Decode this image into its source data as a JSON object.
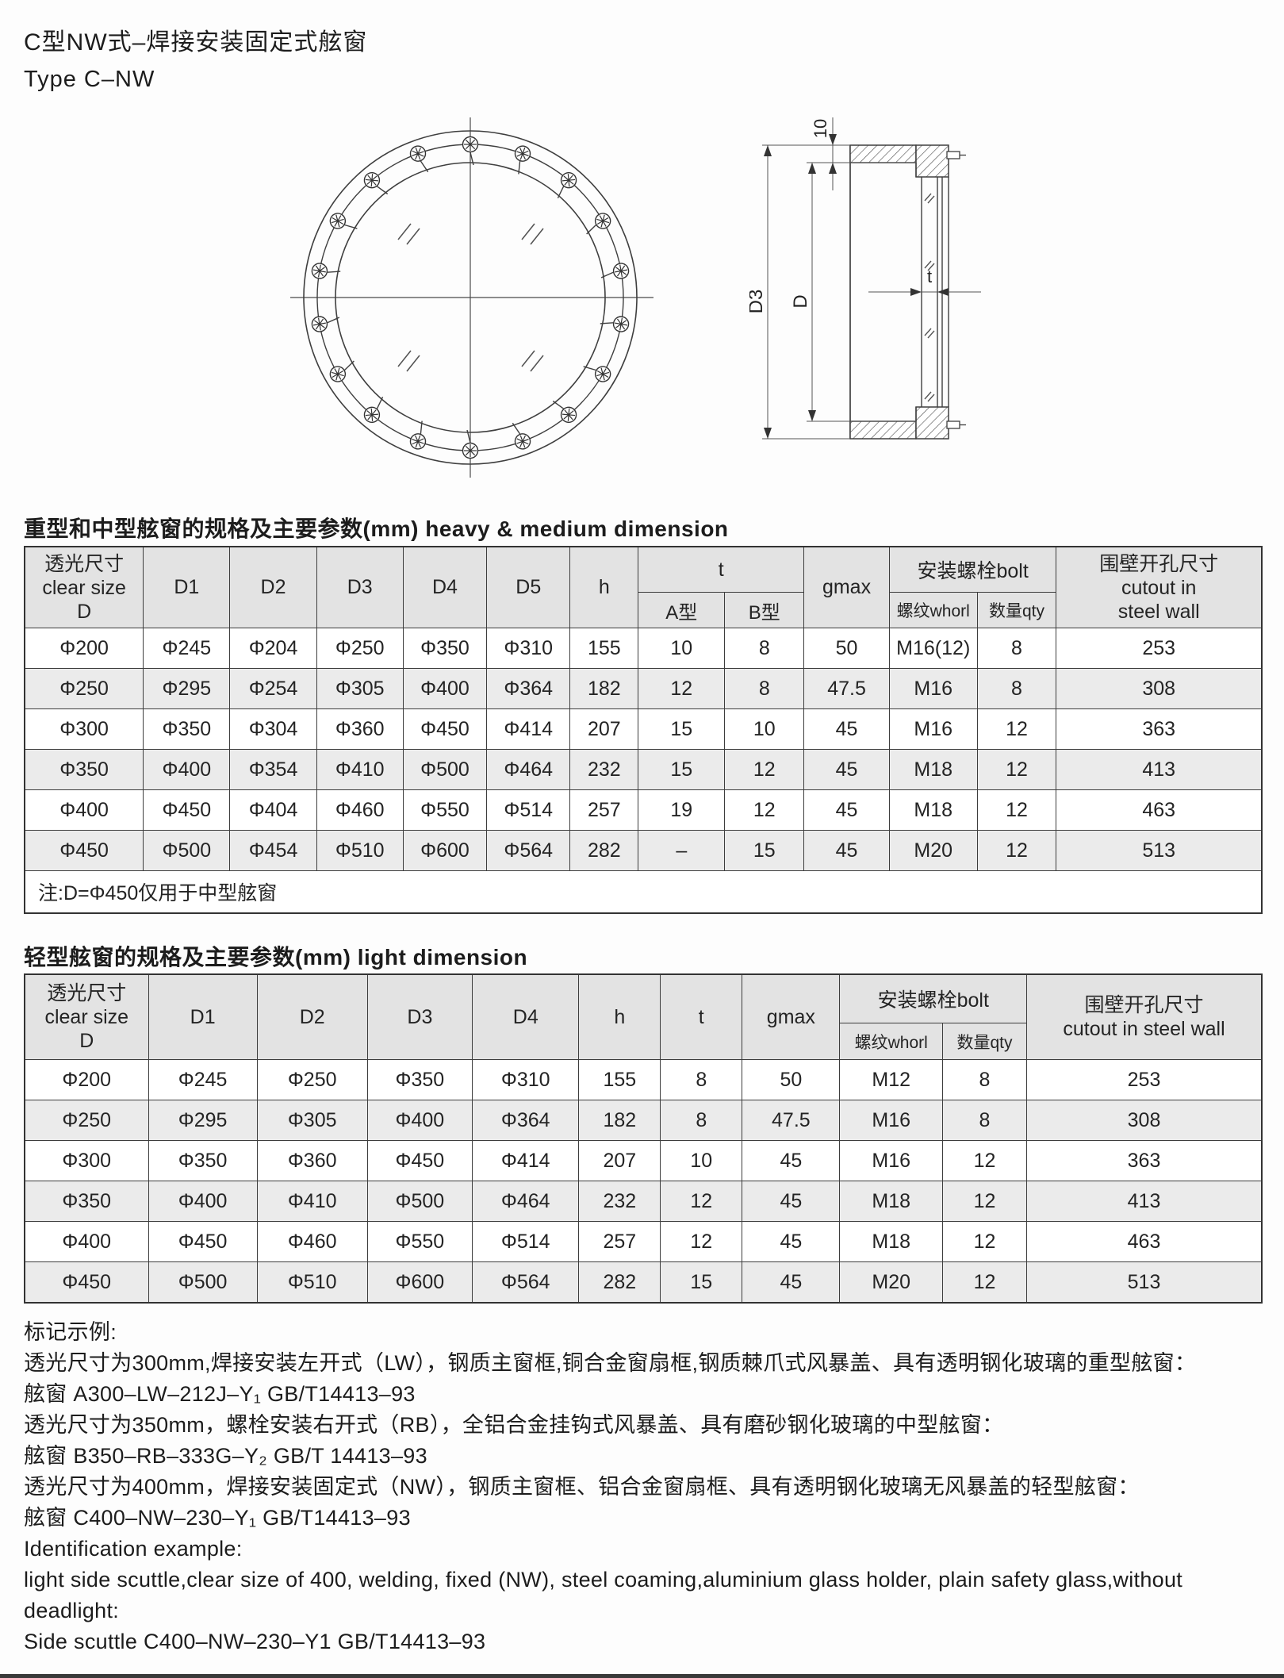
{
  "page": {
    "title_zh": "C型NW式–焊接安装固定式舷窗",
    "title_en": "Type C–NW"
  },
  "drawing": {
    "section_dims": {
      "wall": "10",
      "outer": "D3",
      "clear": "D",
      "glass_thickness": "t"
    }
  },
  "heavy_table": {
    "title": "重型和中型舷窗的规格及主要参数(mm)  heavy & medium dimension",
    "header": {
      "clear_zh": "透光尺寸",
      "clear_en": "clear size",
      "clear_sym": "D",
      "d1": "D1",
      "d2": "D2",
      "d3": "D3",
      "d4": "D4",
      "d5": "D5",
      "h": "h",
      "t": "t",
      "t_a": "A型",
      "t_b": "B型",
      "gmax": "gmax",
      "bolt": "安装螺栓bolt",
      "whorl": "螺纹whorl",
      "qty": "数量qty",
      "cutout_zh": "围壁开孔尺寸",
      "cutout_en1": "cutout in",
      "cutout_en2": "steel wall"
    },
    "rows": [
      [
        "Φ200",
        "Φ245",
        "Φ204",
        "Φ250",
        "Φ350",
        "Φ310",
        "155",
        "10",
        "8",
        "50",
        "M16(12)",
        "8",
        "253"
      ],
      [
        "Φ250",
        "Φ295",
        "Φ254",
        "Φ305",
        "Φ400",
        "Φ364",
        "182",
        "12",
        "8",
        "47.5",
        "M16",
        "8",
        "308"
      ],
      [
        "Φ300",
        "Φ350",
        "Φ304",
        "Φ360",
        "Φ450",
        "Φ414",
        "207",
        "15",
        "10",
        "45",
        "M16",
        "12",
        "363"
      ],
      [
        "Φ350",
        "Φ400",
        "Φ354",
        "Φ410",
        "Φ500",
        "Φ464",
        "232",
        "15",
        "12",
        "45",
        "M18",
        "12",
        "413"
      ],
      [
        "Φ400",
        "Φ450",
        "Φ404",
        "Φ460",
        "Φ550",
        "Φ514",
        "257",
        "19",
        "12",
        "45",
        "M18",
        "12",
        "463"
      ],
      [
        "Φ450",
        "Φ500",
        "Φ454",
        "Φ510",
        "Φ600",
        "Φ564",
        "282",
        "–",
        "15",
        "45",
        "M20",
        "12",
        "513"
      ]
    ],
    "note": "注:D=Φ450仅用于中型舷窗"
  },
  "light_table": {
    "title": "轻型舷窗的规格及主要参数(mm)  light dimension",
    "header": {
      "clear_zh": "透光尺寸",
      "clear_en": "clear size",
      "clear_sym": "D",
      "d1": "D1",
      "d2": "D2",
      "d3": "D3",
      "d4": "D4",
      "h": "h",
      "t": "t",
      "gmax": "gmax",
      "bolt": "安装螺栓bolt",
      "whorl": "螺纹whorl",
      "qty": "数量qty",
      "cutout_zh": "围壁开孔尺寸",
      "cutout_en": "cutout in steel wall"
    },
    "rows": [
      [
        "Φ200",
        "Φ245",
        "Φ250",
        "Φ350",
        "Φ310",
        "155",
        "8",
        "50",
        "M12",
        "8",
        "253"
      ],
      [
        "Φ250",
        "Φ295",
        "Φ305",
        "Φ400",
        "Φ364",
        "182",
        "8",
        "47.5",
        "M16",
        "8",
        "308"
      ],
      [
        "Φ300",
        "Φ350",
        "Φ360",
        "Φ450",
        "Φ414",
        "207",
        "10",
        "45",
        "M16",
        "12",
        "363"
      ],
      [
        "Φ350",
        "Φ400",
        "Φ410",
        "Φ500",
        "Φ464",
        "232",
        "12",
        "45",
        "M18",
        "12",
        "413"
      ],
      [
        "Φ400",
        "Φ450",
        "Φ460",
        "Φ550",
        "Φ514",
        "257",
        "12",
        "45",
        "M18",
        "12",
        "463"
      ],
      [
        "Φ450",
        "Φ500",
        "Φ510",
        "Φ600",
        "Φ564",
        "282",
        "15",
        "45",
        "M20",
        "12",
        "513"
      ]
    ]
  },
  "examples": {
    "lines": [
      "标记示例:",
      "透光尺寸为300mm,焊接安装左开式（LW），钢质主窗框,铜合金窗扇框,钢质棘爪式风暴盖、具有透明钢化玻璃的重型舷窗：",
      "舷窗 A300–LW–212J–Y₁  GB/T14413–93",
      "透光尺寸为350mm，螺栓安装右开式（RB），全铝合金挂钩式风暴盖、具有磨砂钢化玻璃的中型舷窗：",
      "舷窗 B350–RB–333G–Y₂  GB/T 14413–93",
      "透光尺寸为400mm，焊接安装固定式（NW），钢质主窗框、铝合金窗扇框、具有透明钢化玻璃无风暴盖的轻型舷窗：",
      "舷窗 C400–NW–230–Y₁  GB/T14413–93",
      "Identification example:",
      "light side scuttle,clear size of 400, welding, fixed (NW), steel coaming,aluminium glass holder, plain safety glass,without",
      "deadlight:",
      "Side scuttle C400–NW–230–Y1 GB/T14413–93"
    ]
  }
}
